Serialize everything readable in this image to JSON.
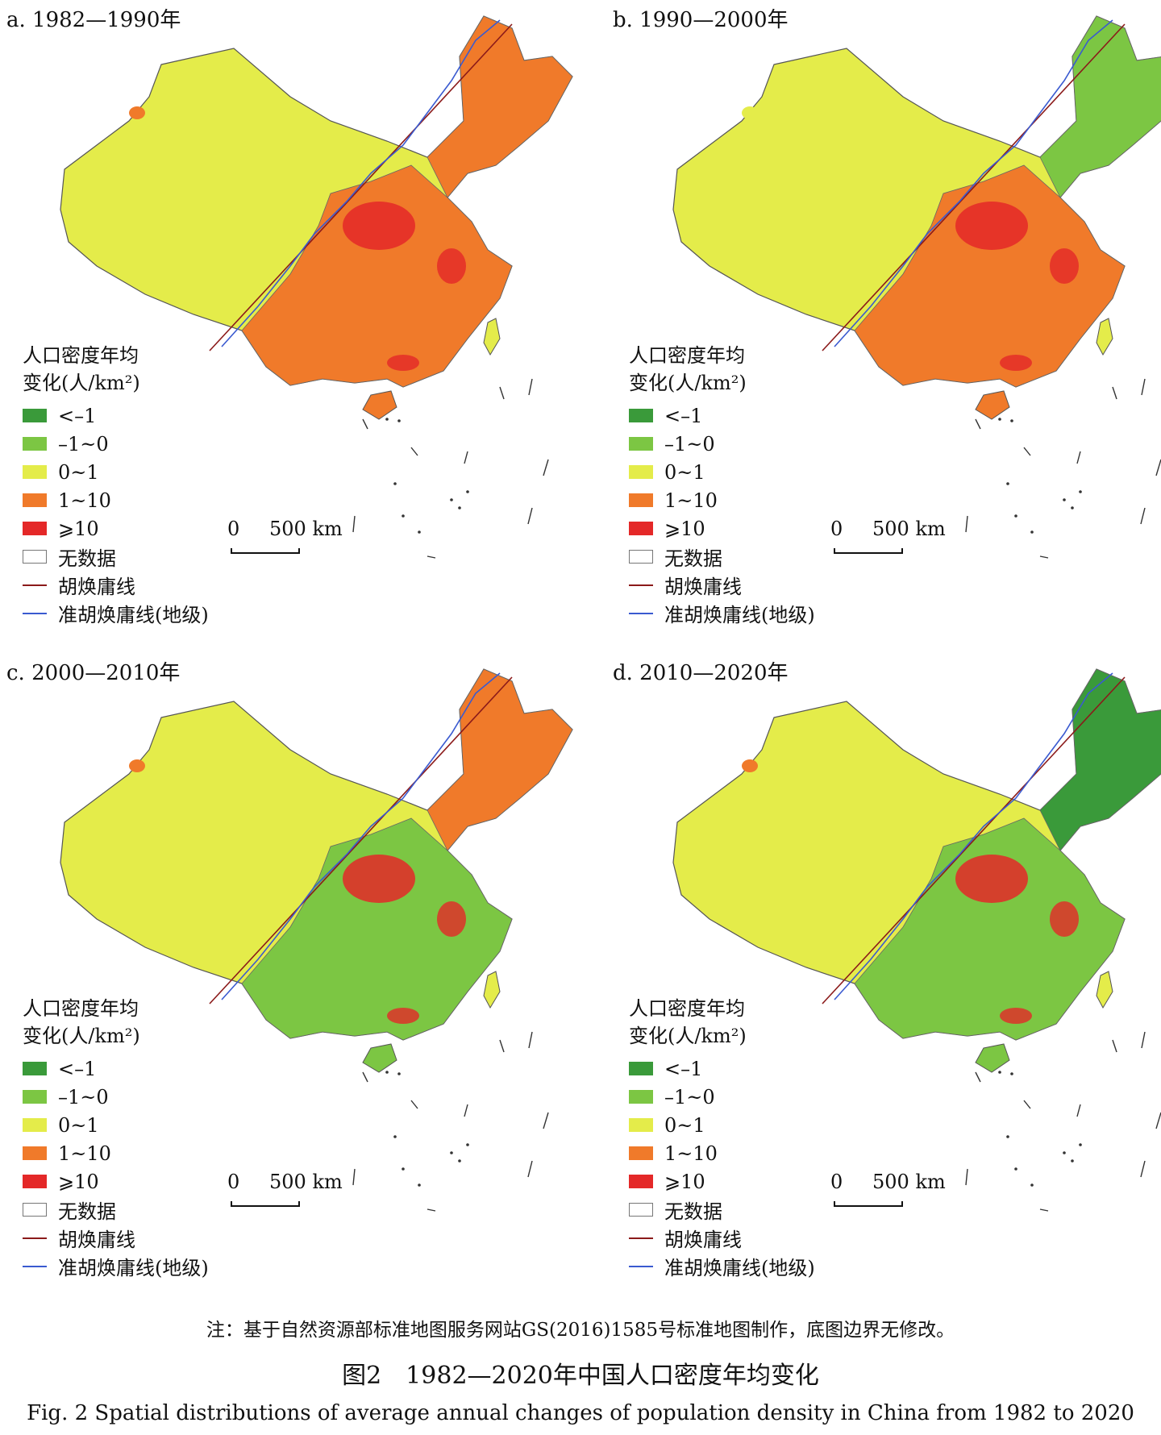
{
  "panels": [
    {
      "title": "a. 1982—1990年",
      "tone": "orange"
    },
    {
      "title": "b. 1990—2000年",
      "tone": "mixed-orange"
    },
    {
      "title": "c. 2000—2010年",
      "tone": "mixed-green"
    },
    {
      "title": "d. 2010—2020年",
      "tone": "green"
    }
  ],
  "legend": {
    "title_line1": "人口密度年均",
    "title_line2": "变化(人/km²)",
    "classes": [
      {
        "label": "<–1",
        "color": "#3a9a3a"
      },
      {
        "label": "–1~0",
        "color": "#7cc643"
      },
      {
        "label": "0~1",
        "color": "#e4ec4a"
      },
      {
        "label": "1~10",
        "color": "#f07a2a"
      },
      {
        "label": "⩾10",
        "color": "#e42828"
      },
      {
        "label": "无数据",
        "color": "#ffffff"
      }
    ],
    "lines": [
      {
        "label": "胡焕庸线",
        "color": "#8b1a1a"
      },
      {
        "label": "准胡焕庸线(地级)",
        "color": "#3a5ad0"
      }
    ]
  },
  "scale": {
    "zero": "0",
    "distance": "500 km"
  },
  "note": "注：基于自然资源部标准地图服务网站GS(2016)1585号标准地图制作，底图边界无修改。",
  "caption_cn": "图2　1982—2020年中国人口密度年均变化",
  "caption_en": "Fig. 2   Spatial distributions of average annual changes of population density in China from 1982 to 2020"
}
